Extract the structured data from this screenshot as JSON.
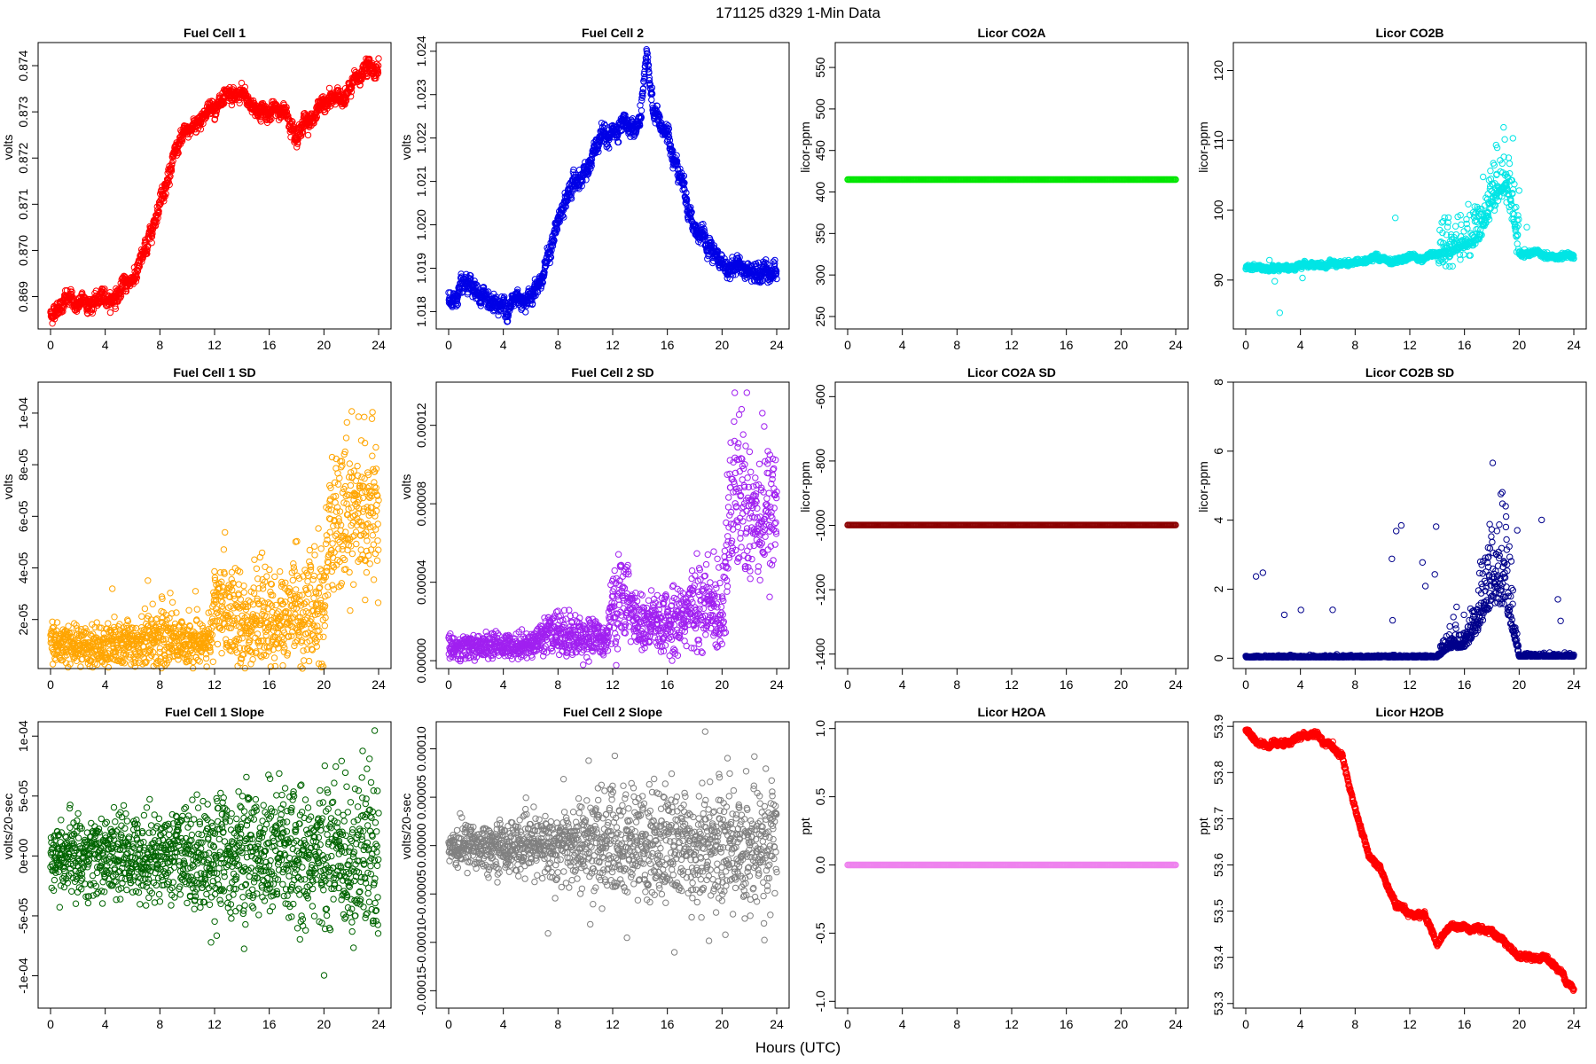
{
  "figure": {
    "title": "171125   d329   1-Min Data",
    "xlabel": "Hours (UTC)"
  },
  "chart_data": [
    {
      "type": "scatter",
      "title": "Fuel Cell 1",
      "ylabel": "volts",
      "color": "#ff0000",
      "xlim": [
        0,
        24
      ],
      "xticks": [
        0,
        4,
        8,
        12,
        16,
        20,
        24
      ],
      "ylim": [
        0.8683,
        0.8745
      ],
      "yticks": [
        0.869,
        0.87,
        0.871,
        0.872,
        0.873,
        0.874
      ],
      "ytick_labels": [
        "0.869",
        "0.870",
        "0.871",
        "0.872",
        "0.873",
        "0.874"
      ],
      "kind": "trend",
      "noise": 0.00012,
      "x": [
        0,
        1,
        2,
        3,
        4,
        5,
        6,
        7,
        8,
        9,
        10,
        11,
        12,
        13,
        14,
        15,
        16,
        17,
        18,
        19,
        20,
        21,
        22,
        23,
        24
      ],
      "y": [
        0.8686,
        0.869,
        0.8688,
        0.8689,
        0.8689,
        0.8691,
        0.8694,
        0.87,
        0.8712,
        0.872,
        0.8725,
        0.8729,
        0.8732,
        0.8731,
        0.8733,
        0.8731,
        0.873,
        0.873,
        0.8727,
        0.8729,
        0.8731,
        0.8733,
        0.8735,
        0.8739,
        0.874
      ]
    },
    {
      "type": "scatter",
      "title": "Fuel Cell 2",
      "ylabel": "volts",
      "color": "#0000e6",
      "xlim": [
        0,
        24
      ],
      "xticks": [
        0,
        4,
        8,
        12,
        16,
        20,
        24
      ],
      "ylim": [
        1.0176,
        1.0242
      ],
      "yticks": [
        1.018,
        1.019,
        1.02,
        1.021,
        1.022,
        1.023,
        1.024
      ],
      "ytick_labels": [
        "1.018",
        "1.019",
        "1.020",
        "1.021",
        "1.022",
        "1.023",
        "1.024"
      ],
      "kind": "trend",
      "noise": 0.00015,
      "x": [
        0,
        1,
        2,
        3,
        4,
        5,
        6,
        7,
        8,
        9,
        10,
        11,
        12,
        13,
        14,
        14.5,
        15,
        16,
        17,
        18,
        19,
        20,
        21,
        22,
        23,
        24
      ],
      "y": [
        1.0183,
        1.0184,
        1.0182,
        1.0183,
        1.0181,
        1.0183,
        1.0185,
        1.019,
        1.02,
        1.0208,
        1.0213,
        1.0218,
        1.0221,
        1.022,
        1.0223,
        1.0237,
        1.0226,
        1.022,
        1.0212,
        1.02,
        1.0193,
        1.019,
        1.0191,
        1.0189,
        1.0192,
        1.019
      ]
    },
    {
      "type": "scatter",
      "title": "Licor CO2A",
      "ylabel": "licor-ppm",
      "color": "#00e600",
      "xlim": [
        0,
        24
      ],
      "xticks": [
        0,
        4,
        8,
        12,
        16,
        20,
        24
      ],
      "ylim": [
        235,
        580
      ],
      "yticks": [
        250,
        300,
        350,
        400,
        450,
        500,
        550
      ],
      "ytick_labels": [
        "250",
        "300",
        "350",
        "400",
        "450",
        "500",
        "550"
      ],
      "kind": "flat",
      "value": 415
    },
    {
      "type": "scatter",
      "title": "Licor CO2B",
      "ylabel": "licor-ppm",
      "color": "#00e5e5",
      "xlim": [
        0,
        24
      ],
      "xticks": [
        0,
        4,
        8,
        12,
        16,
        20,
        24
      ],
      "ylim": [
        83,
        124
      ],
      "yticks": [
        90,
        100,
        110,
        120
      ],
      "ytick_labels": [
        "90",
        "100",
        "110",
        "120"
      ],
      "kind": "trend",
      "noise": 0.25,
      "spread": [
        [
          14,
          18.5,
          2.5
        ],
        [
          18,
          20,
          4.5
        ]
      ],
      "x": [
        0,
        2,
        4,
        6,
        8,
        10,
        12,
        14,
        15,
        16,
        17,
        18,
        19,
        19.5,
        20,
        22,
        24
      ],
      "y": [
        91.6,
        91.8,
        91.9,
        92.0,
        92.5,
        93.0,
        93.3,
        93.6,
        94.2,
        94.5,
        96.0,
        101.0,
        104.0,
        100.0,
        93.6,
        93.6,
        93.6
      ]
    },
    {
      "type": "scatter",
      "title": "Fuel Cell 1 SD",
      "ylabel": "volts",
      "color": "#ffa500",
      "xlim": [
        0,
        24
      ],
      "xticks": [
        0,
        4,
        8,
        12,
        16,
        20,
        24
      ],
      "ylim": [
        1e-06,
        0.000112
      ],
      "yticks": [
        2e-05,
        4e-05,
        6e-05,
        8e-05,
        0.0001
      ],
      "ytick_labels": [
        "2e-05",
        "4e-05",
        "6e-05",
        "8e-05",
        "1e-04"
      ],
      "kind": "noise",
      "x": [
        0,
        4,
        7,
        8,
        11.5,
        12,
        13,
        14,
        16,
        18,
        20,
        20.5,
        21,
        22,
        24
      ],
      "y": [
        9.5e-06,
        9.5e-06,
        1.2e-05,
        1.3e-05,
        1.1e-05,
        2.2e-05,
        2.7e-05,
        1.8e-05,
        1.8e-05,
        2.2e-05,
        2.2e-05,
        5.2e-05,
        6.6e-05,
        6.2e-05,
        6.2e-05
      ],
      "spread_val": [
        4e-06,
        4e-06,
        6e-06,
        7e-06,
        4e-06,
        9e-06,
        1e-05,
        8e-06,
        9e-06,
        1.1e-05,
        1.2e-05,
        1.4e-05,
        1.5e-05,
        1.4e-05,
        1.4e-05
      ]
    },
    {
      "type": "scatter",
      "title": "Fuel Cell 2 SD",
      "ylabel": "volts",
      "color": "#a020f0",
      "xlim": [
        0,
        24
      ],
      "xticks": [
        0,
        4,
        8,
        12,
        16,
        20,
        24
      ],
      "ylim": [
        -4e-06,
        0.000142
      ],
      "yticks": [
        0,
        4e-05,
        8e-05,
        0.00012
      ],
      "ytick_labels": [
        "0.00000",
        "0.00004",
        "0.00008",
        "0.00012"
      ],
      "kind": "noise",
      "x": [
        0,
        6,
        7,
        8,
        11.5,
        12,
        13,
        14,
        16,
        18,
        20,
        20.5,
        21,
        22,
        24
      ],
      "y": [
        7e-06,
        8e-06,
        1.3e-05,
        1.4e-05,
        1.1e-05,
        2.6e-05,
        3.2e-05,
        1.7e-05,
        1.9e-05,
        2.7e-05,
        2.6e-05,
        7.6e-05,
        8.3e-05,
        7.7e-05,
        7.4e-05
      ],
      "spread_val": [
        3e-06,
        3e-06,
        5e-06,
        6e-06,
        4e-06,
        1e-05,
        1.1e-05,
        7e-06,
        8e-06,
        1.1e-05,
        1.2e-05,
        2e-05,
        2.1e-05,
        1.9e-05,
        1.8e-05
      ]
    },
    {
      "type": "scatter",
      "title": "Licor CO2A SD",
      "ylabel": "licor-ppm",
      "color": "#8b0000",
      "xlim": [
        0,
        24
      ],
      "xticks": [
        0,
        4,
        8,
        12,
        16,
        20,
        24
      ],
      "ylim": [
        -1445,
        -555
      ],
      "yticks": [
        -1400,
        -1200,
        -1000,
        -800,
        -600
      ],
      "ytick_labels": [
        "-1400",
        "-1200",
        "-1000",
        "-800",
        "-600"
      ],
      "kind": "flat",
      "value": -999
    },
    {
      "type": "scatter",
      "title": "Licor CO2B SD",
      "ylabel": "licor-ppm",
      "color": "#00008b",
      "xlim": [
        0,
        24
      ],
      "xticks": [
        0,
        4,
        8,
        12,
        16,
        20,
        24
      ],
      "ylim": [
        -0.3,
        8.0
      ],
      "yticks": [
        0,
        2,
        4,
        6,
        8
      ],
      "ytick_labels": [
        "0",
        "2",
        "4",
        "6",
        "8"
      ],
      "kind": "sd",
      "x": [
        0,
        14,
        15,
        16,
        17,
        18,
        19,
        20,
        24
      ],
      "y": [
        0.03,
        0.03,
        0.3,
        0.3,
        0.8,
        1.6,
        1.5,
        0.05,
        0.05
      ],
      "spread_val": [
        0.02,
        0.03,
        0.4,
        0.5,
        1.0,
        1.5,
        1.4,
        0.05,
        0.04
      ]
    },
    {
      "type": "scatter",
      "title": "Fuel Cell 1 Slope",
      "ylabel": "volts/20-sec",
      "color": "#006400",
      "xlim": [
        0,
        24
      ],
      "xticks": [
        0,
        4,
        8,
        12,
        16,
        20,
        24
      ],
      "ylim": [
        -0.000127,
        0.000112
      ],
      "yticks": [
        -0.0001,
        -5e-05,
        0,
        5e-05,
        0.0001
      ],
      "ytick_labels": [
        "-1e-04",
        "-5e-05",
        "0e+00",
        "5e-05",
        "1e-04"
      ],
      "kind": "noise",
      "x": [
        0,
        8,
        12,
        16,
        20,
        24
      ],
      "y": [
        0,
        0,
        0,
        0,
        0,
        0
      ],
      "spread_val": [
        1.5e-05,
        1.8e-05,
        2.5e-05,
        2.8e-05,
        3e-05,
        3.5e-05
      ]
    },
    {
      "type": "scatter",
      "title": "Fuel Cell 2 Slope",
      "ylabel": "volts/20-sec",
      "color": "#808080",
      "xlim": [
        0,
        24
      ],
      "xticks": [
        0,
        4,
        8,
        12,
        16,
        20,
        24
      ],
      "ylim": [
        -0.000168,
        0.000128
      ],
      "yticks": [
        -0.00015,
        -0.0001,
        -5e-05,
        0,
        5e-05,
        0.0001
      ],
      "ytick_labels": [
        "-0.00015",
        "-0.00010",
        "-0.00005",
        "0.00000",
        "0.00005",
        "0.00010"
      ],
      "kind": "noise",
      "x": [
        0,
        6,
        8,
        12,
        16,
        20,
        24
      ],
      "y": [
        0,
        0,
        0,
        0,
        0,
        0,
        0
      ],
      "spread_val": [
        1.2e-05,
        1.3e-05,
        2e-05,
        2.8e-05,
        3e-05,
        3.2e-05,
        3.6e-05
      ]
    },
    {
      "type": "scatter",
      "title": "Licor H2OA",
      "ylabel": "ppt",
      "color": "#ee82ee",
      "xlim": [
        0,
        24
      ],
      "xticks": [
        0,
        4,
        8,
        12,
        16,
        20,
        24
      ],
      "ylim": [
        -1.05,
        1.05
      ],
      "yticks": [
        -1.0,
        -0.5,
        0.0,
        0.5,
        1.0
      ],
      "ytick_labels": [
        "-1.0",
        "-0.5",
        "0.0",
        "0.5",
        "1.0"
      ],
      "kind": "flat",
      "value": 0.0
    },
    {
      "type": "scatter",
      "title": "Licor H2OB",
      "ylabel": "ppt",
      "color": "#ff0000",
      "xlim": [
        0,
        24
      ],
      "xticks": [
        0,
        4,
        8,
        12,
        16,
        20,
        24
      ],
      "ylim": [
        53.29,
        53.91
      ],
      "yticks": [
        53.3,
        53.4,
        53.5,
        53.6,
        53.7,
        53.8,
        53.9
      ],
      "ytick_labels": [
        "53.3",
        "53.4",
        "53.5",
        "53.6",
        "53.7",
        "53.8",
        "53.9"
      ],
      "kind": "trend",
      "noise": 0.004,
      "x": [
        0,
        1,
        2,
        3,
        4,
        5,
        6,
        7,
        8,
        9,
        10,
        11,
        12,
        13,
        14,
        15,
        16,
        17,
        18,
        19,
        20,
        21,
        22,
        23,
        24
      ],
      "y": [
        53.89,
        53.86,
        53.87,
        53.86,
        53.88,
        53.88,
        53.86,
        53.84,
        53.72,
        53.62,
        53.58,
        53.51,
        53.49,
        53.5,
        53.43,
        53.47,
        53.47,
        53.46,
        53.46,
        53.43,
        53.4,
        53.39,
        53.4,
        53.37,
        53.33
      ]
    }
  ]
}
